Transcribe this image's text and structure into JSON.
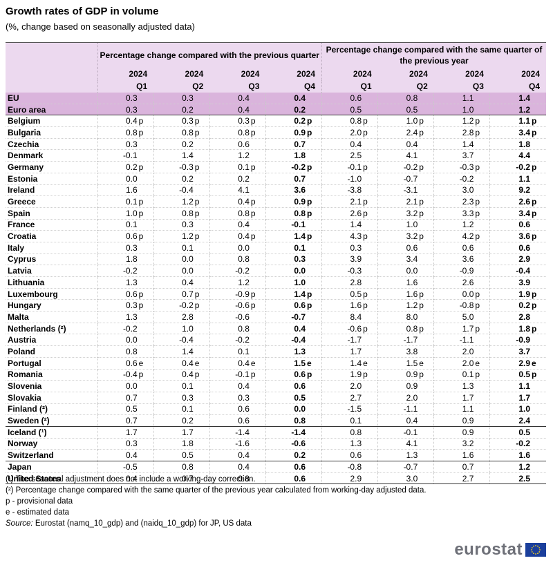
{
  "title": "Growth rates of GDP in volume",
  "subtitle": "(%, change based on seasonally adjusted data)",
  "header": {
    "group1": "Percentage change compared with the previous quarter",
    "group2": "Percentage change compared with the same quarter of the previous year",
    "year": "2024",
    "quarters": [
      "Q1",
      "Q2",
      "Q3",
      "Q4"
    ]
  },
  "rows": [
    {
      "name": "EU",
      "cells": [
        [
          "0.3",
          ""
        ],
        [
          "0.3",
          ""
        ],
        [
          "0.4",
          ""
        ],
        [
          "0.4",
          ""
        ],
        [
          "0.6",
          ""
        ],
        [
          "0.8",
          ""
        ],
        [
          "1.1",
          ""
        ],
        [
          "1.4",
          ""
        ]
      ]
    },
    {
      "name": "Euro area",
      "cells": [
        [
          "0.3",
          ""
        ],
        [
          "0.2",
          ""
        ],
        [
          "0.4",
          ""
        ],
        [
          "0.2",
          ""
        ],
        [
          "0.5",
          ""
        ],
        [
          "0.5",
          ""
        ],
        [
          "1.0",
          ""
        ],
        [
          "1.2",
          ""
        ]
      ]
    },
    {
      "name": "Belgium",
      "cells": [
        [
          "0.4",
          "p"
        ],
        [
          "0.3",
          "p"
        ],
        [
          "0.3",
          "p"
        ],
        [
          "0.2",
          "p"
        ],
        [
          "0.8",
          "p"
        ],
        [
          "1.0",
          "p"
        ],
        [
          "1.2",
          "p"
        ],
        [
          "1.1",
          "p"
        ]
      ]
    },
    {
      "name": "Bulgaria",
      "cells": [
        [
          "0.8",
          "p"
        ],
        [
          "0.8",
          "p"
        ],
        [
          "0.8",
          "p"
        ],
        [
          "0.9",
          "p"
        ],
        [
          "2.0",
          "p"
        ],
        [
          "2.4",
          "p"
        ],
        [
          "2.8",
          "p"
        ],
        [
          "3.4",
          "p"
        ]
      ]
    },
    {
      "name": "Czechia",
      "cells": [
        [
          "0.3",
          ""
        ],
        [
          "0.2",
          ""
        ],
        [
          "0.6",
          ""
        ],
        [
          "0.7",
          ""
        ],
        [
          "0.4",
          ""
        ],
        [
          "0.4",
          ""
        ],
        [
          "1.4",
          ""
        ],
        [
          "1.8",
          ""
        ]
      ]
    },
    {
      "name": "Denmark",
      "cells": [
        [
          "-0.1",
          ""
        ],
        [
          "1.4",
          ""
        ],
        [
          "1.2",
          ""
        ],
        [
          "1.8",
          ""
        ],
        [
          "2.5",
          ""
        ],
        [
          "4.1",
          ""
        ],
        [
          "3.7",
          ""
        ],
        [
          "4.4",
          ""
        ]
      ]
    },
    {
      "name": "Germany",
      "cells": [
        [
          "0.2",
          "p"
        ],
        [
          "-0.3",
          "p"
        ],
        [
          "0.1",
          "p"
        ],
        [
          "-0.2",
          "p"
        ],
        [
          "-0.1",
          "p"
        ],
        [
          "-0.2",
          "p"
        ],
        [
          "-0.3",
          "p"
        ],
        [
          "-0.2",
          "p"
        ]
      ]
    },
    {
      "name": "Estonia",
      "cells": [
        [
          "0.0",
          ""
        ],
        [
          "0.2",
          ""
        ],
        [
          "0.2",
          ""
        ],
        [
          "0.7",
          ""
        ],
        [
          "-1.0",
          ""
        ],
        [
          "-0.7",
          ""
        ],
        [
          "-0.2",
          ""
        ],
        [
          "1.1",
          ""
        ]
      ]
    },
    {
      "name": "Ireland",
      "cells": [
        [
          "1.6",
          ""
        ],
        [
          "-0.4",
          ""
        ],
        [
          "4.1",
          ""
        ],
        [
          "3.6",
          ""
        ],
        [
          "-3.8",
          ""
        ],
        [
          "-3.1",
          ""
        ],
        [
          "3.0",
          ""
        ],
        [
          "9.2",
          ""
        ]
      ]
    },
    {
      "name": "Greece",
      "cells": [
        [
          "0.1",
          "p"
        ],
        [
          "1.2",
          "p"
        ],
        [
          "0.4",
          "p"
        ],
        [
          "0.9",
          "p"
        ],
        [
          "2.1",
          "p"
        ],
        [
          "2.1",
          "p"
        ],
        [
          "2.3",
          "p"
        ],
        [
          "2.6",
          "p"
        ]
      ]
    },
    {
      "name": "Spain",
      "cells": [
        [
          "1.0",
          "p"
        ],
        [
          "0.8",
          "p"
        ],
        [
          "0.8",
          "p"
        ],
        [
          "0.8",
          "p"
        ],
        [
          "2.6",
          "p"
        ],
        [
          "3.2",
          "p"
        ],
        [
          "3.3",
          "p"
        ],
        [
          "3.4",
          "p"
        ]
      ]
    },
    {
      "name": "France",
      "cells": [
        [
          "0.1",
          ""
        ],
        [
          "0.3",
          ""
        ],
        [
          "0.4",
          ""
        ],
        [
          "-0.1",
          ""
        ],
        [
          "1.4",
          ""
        ],
        [
          "1.0",
          ""
        ],
        [
          "1.2",
          ""
        ],
        [
          "0.6",
          ""
        ]
      ]
    },
    {
      "name": "Croatia",
      "cells": [
        [
          "0.6",
          "p"
        ],
        [
          "1.2",
          "p"
        ],
        [
          "0.4",
          "p"
        ],
        [
          "1.4",
          "p"
        ],
        [
          "4.3",
          "p"
        ],
        [
          "3.2",
          "p"
        ],
        [
          "4.2",
          "p"
        ],
        [
          "3.6",
          "p"
        ]
      ]
    },
    {
      "name": "Italy",
      "cells": [
        [
          "0.3",
          ""
        ],
        [
          "0.1",
          ""
        ],
        [
          "0.0",
          ""
        ],
        [
          "0.1",
          ""
        ],
        [
          "0.3",
          ""
        ],
        [
          "0.6",
          ""
        ],
        [
          "0.6",
          ""
        ],
        [
          "0.6",
          ""
        ]
      ]
    },
    {
      "name": "Cyprus",
      "cells": [
        [
          "1.8",
          ""
        ],
        [
          "0.0",
          ""
        ],
        [
          "0.8",
          ""
        ],
        [
          "0.3",
          ""
        ],
        [
          "3.9",
          ""
        ],
        [
          "3.4",
          ""
        ],
        [
          "3.6",
          ""
        ],
        [
          "2.9",
          ""
        ]
      ]
    },
    {
      "name": "Latvia",
      "cells": [
        [
          "-0.2",
          ""
        ],
        [
          "0.0",
          ""
        ],
        [
          "-0.2",
          ""
        ],
        [
          "0.0",
          ""
        ],
        [
          "-0.3",
          ""
        ],
        [
          "0.0",
          ""
        ],
        [
          "-0.9",
          ""
        ],
        [
          "-0.4",
          ""
        ]
      ]
    },
    {
      "name": "Lithuania",
      "cells": [
        [
          "1.3",
          ""
        ],
        [
          "0.4",
          ""
        ],
        [
          "1.2",
          ""
        ],
        [
          "1.0",
          ""
        ],
        [
          "2.8",
          ""
        ],
        [
          "1.6",
          ""
        ],
        [
          "2.6",
          ""
        ],
        [
          "3.9",
          ""
        ]
      ]
    },
    {
      "name": "Luxembourg",
      "cells": [
        [
          "0.6",
          "p"
        ],
        [
          "0.7",
          "p"
        ],
        [
          "-0.9",
          "p"
        ],
        [
          "1.4",
          "p"
        ],
        [
          "0.5",
          "p"
        ],
        [
          "1.6",
          "p"
        ],
        [
          "0.0",
          "p"
        ],
        [
          "1.9",
          "p"
        ]
      ]
    },
    {
      "name": "Hungary",
      "cells": [
        [
          "0.3",
          "p"
        ],
        [
          "-0.2",
          "p"
        ],
        [
          "-0.6",
          "p"
        ],
        [
          "0.6",
          "p"
        ],
        [
          "1.6",
          "p"
        ],
        [
          "1.2",
          "p"
        ],
        [
          "-0.8",
          "p"
        ],
        [
          "0.2",
          "p"
        ]
      ]
    },
    {
      "name": "Malta",
      "cells": [
        [
          "1.3",
          ""
        ],
        [
          "2.8",
          ""
        ],
        [
          "-0.6",
          ""
        ],
        [
          "-0.7",
          ""
        ],
        [
          "8.4",
          ""
        ],
        [
          "8.0",
          ""
        ],
        [
          "5.0",
          ""
        ],
        [
          "2.8",
          ""
        ]
      ]
    },
    {
      "name": "Netherlands (²)",
      "cells": [
        [
          "-0.2",
          ""
        ],
        [
          "1.0",
          ""
        ],
        [
          "0.8",
          ""
        ],
        [
          "0.4",
          ""
        ],
        [
          "-0.6",
          "p"
        ],
        [
          "0.8",
          "p"
        ],
        [
          "1.7",
          "p"
        ],
        [
          "1.8",
          "p"
        ]
      ]
    },
    {
      "name": "Austria",
      "cells": [
        [
          "0.0",
          ""
        ],
        [
          "-0.4",
          ""
        ],
        [
          "-0.2",
          ""
        ],
        [
          "-0.4",
          ""
        ],
        [
          "-1.7",
          ""
        ],
        [
          "-1.7",
          ""
        ],
        [
          "-1.1",
          ""
        ],
        [
          "-0.9",
          ""
        ]
      ]
    },
    {
      "name": "Poland",
      "cells": [
        [
          "0.8",
          ""
        ],
        [
          "1.4",
          ""
        ],
        [
          "0.1",
          ""
        ],
        [
          "1.3",
          ""
        ],
        [
          "1.7",
          ""
        ],
        [
          "3.8",
          ""
        ],
        [
          "2.0",
          ""
        ],
        [
          "3.7",
          ""
        ]
      ]
    },
    {
      "name": "Portugal",
      "cells": [
        [
          "0.6",
          "e"
        ],
        [
          "0.4",
          "e"
        ],
        [
          "0.4",
          "e"
        ],
        [
          "1.5",
          "e"
        ],
        [
          "1.4",
          "e"
        ],
        [
          "1.5",
          "e"
        ],
        [
          "2.0",
          "e"
        ],
        [
          "2.9",
          "e"
        ]
      ]
    },
    {
      "name": "Romania",
      "cells": [
        [
          "-0.4",
          "p"
        ],
        [
          "0.4",
          "p"
        ],
        [
          "-0.1",
          "p"
        ],
        [
          "0.6",
          "p"
        ],
        [
          "1.9",
          "p"
        ],
        [
          "0.9",
          "p"
        ],
        [
          "0.1",
          "p"
        ],
        [
          "0.5",
          "p"
        ]
      ]
    },
    {
      "name": "Slovenia",
      "cells": [
        [
          "0.0",
          ""
        ],
        [
          "0.1",
          ""
        ],
        [
          "0.4",
          ""
        ],
        [
          "0.6",
          ""
        ],
        [
          "2.0",
          ""
        ],
        [
          "0.9",
          ""
        ],
        [
          "1.3",
          ""
        ],
        [
          "1.1",
          ""
        ]
      ]
    },
    {
      "name": "Slovakia",
      "cells": [
        [
          "0.7",
          ""
        ],
        [
          "0.3",
          ""
        ],
        [
          "0.3",
          ""
        ],
        [
          "0.5",
          ""
        ],
        [
          "2.7",
          ""
        ],
        [
          "2.0",
          ""
        ],
        [
          "1.7",
          ""
        ],
        [
          "1.7",
          ""
        ]
      ]
    },
    {
      "name": "Finland (²)",
      "cells": [
        [
          "0.5",
          ""
        ],
        [
          "0.1",
          ""
        ],
        [
          "0.6",
          ""
        ],
        [
          "0.0",
          ""
        ],
        [
          "-1.5",
          ""
        ],
        [
          "-1.1",
          ""
        ],
        [
          "1.1",
          ""
        ],
        [
          "1.0",
          ""
        ]
      ]
    },
    {
      "name": "Sweden (²)",
      "cells": [
        [
          "0.7",
          ""
        ],
        [
          "0.2",
          ""
        ],
        [
          "0.6",
          ""
        ],
        [
          "0.8",
          ""
        ],
        [
          "0.1",
          ""
        ],
        [
          "0.4",
          ""
        ],
        [
          "0.9",
          ""
        ],
        [
          "2.4",
          ""
        ]
      ]
    },
    {
      "name": "Iceland (¹)",
      "cells": [
        [
          "1.7",
          ""
        ],
        [
          "1.7",
          ""
        ],
        [
          "-1.4",
          ""
        ],
        [
          "-1.4",
          ""
        ],
        [
          "0.8",
          ""
        ],
        [
          "-0.1",
          ""
        ],
        [
          "0.9",
          ""
        ],
        [
          "0.5",
          ""
        ]
      ]
    },
    {
      "name": "Norway",
      "cells": [
        [
          "0.3",
          ""
        ],
        [
          "1.8",
          ""
        ],
        [
          "-1.6",
          ""
        ],
        [
          "-0.6",
          ""
        ],
        [
          "1.3",
          ""
        ],
        [
          "4.1",
          ""
        ],
        [
          "3.2",
          ""
        ],
        [
          "-0.2",
          ""
        ]
      ]
    },
    {
      "name": "Switzerland",
      "cells": [
        [
          "0.4",
          ""
        ],
        [
          "0.5",
          ""
        ],
        [
          "0.4",
          ""
        ],
        [
          "0.2",
          ""
        ],
        [
          "0.6",
          ""
        ],
        [
          "1.3",
          ""
        ],
        [
          "1.6",
          ""
        ],
        [
          "1.6",
          ""
        ]
      ]
    },
    {
      "name": "Japan",
      "cells": [
        [
          "-0.5",
          ""
        ],
        [
          "0.8",
          ""
        ],
        [
          "0.4",
          ""
        ],
        [
          "0.6",
          ""
        ],
        [
          "-0.8",
          ""
        ],
        [
          "-0.7",
          ""
        ],
        [
          "0.7",
          ""
        ],
        [
          "1.2",
          ""
        ]
      ]
    },
    {
      "name": "United States",
      "cells": [
        [
          "0.4",
          ""
        ],
        [
          "0.7",
          ""
        ],
        [
          "0.8",
          ""
        ],
        [
          "0.6",
          ""
        ],
        [
          "2.9",
          ""
        ],
        [
          "3.0",
          ""
        ],
        [
          "2.7",
          ""
        ],
        [
          "2.5",
          ""
        ]
      ]
    }
  ],
  "notes": [
    "(¹) The seasonal adjustment does not include a working-day correction.",
    "(²) Percentage change compared with the same quarter of the previous year calculated from working-day adjusted data.",
    "p - provisional data",
    "e - estimated data"
  ],
  "source": {
    "label": "Source:",
    "text": " Eurostat (namq_10_gdp) and (naidq_10_gdp) for JP, US data"
  },
  "logo": {
    "text": "eurostat",
    "flag_color": "#1b3f9c",
    "star_color": "#ffd617"
  },
  "colors": {
    "header_bg": "#ecd9ef",
    "aggregate_bg": "#dab4dc"
  }
}
